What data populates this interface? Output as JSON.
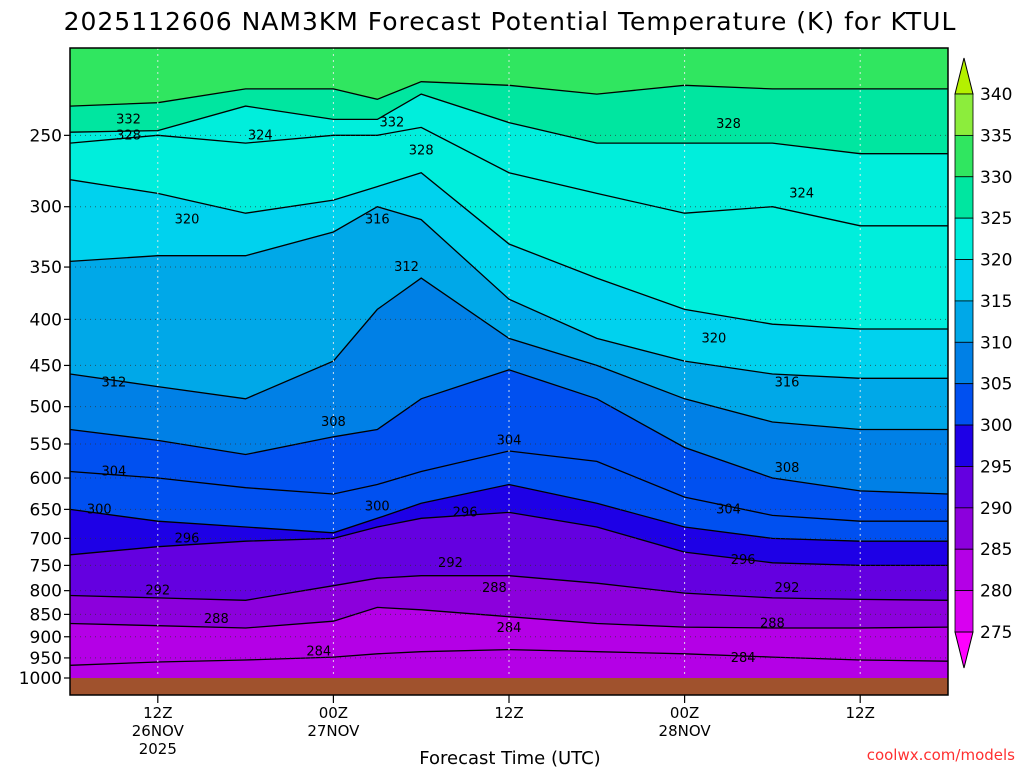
{
  "chart_data": {
    "type": "heatmap",
    "title": "2025112606 NAM3KM Forecast Potential Temperature (K) for KTUL",
    "xlabel": "Forecast Time (UTC)",
    "ylabel": "",
    "credit": "coolwx.com/models",
    "units": "K",
    "y_axis": {
      "quantity": "pressure (hPa)",
      "scale": "log",
      "inverted": true,
      "range": [
        1000,
        200
      ],
      "ticks": [
        250,
        300,
        350,
        400,
        450,
        500,
        550,
        600,
        650,
        700,
        750,
        800,
        850,
        900,
        950,
        1000
      ]
    },
    "x_axis": {
      "range_hours": [
        0,
        60
      ],
      "ticks": [
        {
          "hour": 6,
          "line1": "12Z",
          "line2": "26NOV",
          "line3": "2025"
        },
        {
          "hour": 18,
          "line1": "00Z",
          "line2": "27NOV",
          "line3": ""
        },
        {
          "hour": 30,
          "line1": "12Z",
          "line2": "",
          "line3": ""
        },
        {
          "hour": 42,
          "line1": "00Z",
          "line2": "28NOV",
          "line3": ""
        },
        {
          "hour": 54,
          "line1": "12Z",
          "line2": "",
          "line3": ""
        }
      ]
    },
    "grid": true,
    "colorbar": {
      "levels": [
        275,
        280,
        285,
        290,
        295,
        300,
        305,
        310,
        315,
        320,
        325,
        330,
        335,
        340
      ],
      "labels": [
        "275",
        "280",
        "285",
        "290",
        "295",
        "300",
        "305",
        "310",
        "315",
        "320",
        "325",
        "330",
        "335",
        "340"
      ],
      "colors": [
        "#ff00ff",
        "#d800f0",
        "#b400e6",
        "#8c00dc",
        "#6400e0",
        "#1e00e6",
        "#0050f0",
        "#0080e6",
        "#00a8e8",
        "#00d2ee",
        "#00eedc",
        "#00e6a0",
        "#30e660",
        "#8ced3c",
        "#b4f000"
      ]
    },
    "ground_color": "#a0522d",
    "time_hours": [
      0,
      6,
      12,
      18,
      21,
      24,
      30,
      36,
      42,
      48,
      54,
      60
    ],
    "contours": [
      {
        "theta": 284,
        "p": [
          968,
          960,
          955,
          948,
          940,
          935,
          930,
          935,
          940,
          948,
          955,
          958
        ]
      },
      {
        "theta": 288,
        "p": [
          870,
          875,
          880,
          865,
          835,
          840,
          855,
          870,
          878,
          880,
          880,
          878
        ]
      },
      {
        "theta": 292,
        "p": [
          810,
          815,
          820,
          790,
          775,
          770,
          770,
          785,
          805,
          815,
          818,
          820
        ]
      },
      {
        "theta": 296,
        "p": [
          730,
          715,
          705,
          700,
          680,
          665,
          655,
          680,
          725,
          745,
          750,
          750
        ]
      },
      {
        "theta": 300,
        "p": [
          650,
          670,
          680,
          690,
          665,
          640,
          610,
          640,
          680,
          700,
          705,
          705
        ]
      },
      {
        "theta": 304,
        "p": [
          590,
          600,
          615,
          625,
          610,
          590,
          560,
          575,
          630,
          660,
          670,
          670
        ]
      },
      {
        "theta": 308,
        "p": [
          530,
          545,
          565,
          540,
          530,
          490,
          455,
          490,
          555,
          600,
          620,
          625
        ]
      },
      {
        "theta": 312,
        "p": [
          460,
          475,
          490,
          445,
          390,
          360,
          420,
          450,
          490,
          520,
          530,
          530
        ]
      },
      {
        "theta": 316,
        "p": [
          345,
          340,
          340,
          320,
          300,
          310,
          380,
          420,
          445,
          460,
          465,
          465
        ]
      },
      {
        "theta": 320,
        "p": [
          280,
          290,
          305,
          295,
          285,
          275,
          330,
          360,
          390,
          405,
          410,
          410
        ]
      },
      {
        "theta": 324,
        "p": [
          255,
          250,
          255,
          250,
          250,
          245,
          275,
          290,
          305,
          300,
          315,
          315
        ]
      },
      {
        "theta": 328,
        "p": [
          248,
          247,
          232,
          240,
          240,
          225,
          242,
          255,
          255,
          255,
          262,
          262
        ]
      },
      {
        "theta": 332,
        "p": [
          232,
          230,
          222,
          222,
          228,
          218,
          220,
          225,
          220,
          222,
          222,
          222
        ]
      }
    ],
    "contour_labels": [
      {
        "text": "284",
        "theta": 284,
        "hour": 17,
        "p": 935
      },
      {
        "theta": 284,
        "text": "284",
        "hour": 30,
        "p": 880
      },
      {
        "theta": 284,
        "text": "284",
        "hour": 46,
        "p": 950
      },
      {
        "theta": 288,
        "text": "288",
        "hour": 10,
        "p": 860
      },
      {
        "theta": 288,
        "text": "288",
        "hour": 29,
        "p": 795
      },
      {
        "theta": 288,
        "text": "288",
        "hour": 48,
        "p": 870
      },
      {
        "theta": 292,
        "text": "292",
        "hour": 6,
        "p": 800
      },
      {
        "theta": 292,
        "text": "292",
        "hour": 26,
        "p": 745
      },
      {
        "theta": 292,
        "text": "292",
        "hour": 49,
        "p": 795
      },
      {
        "theta": 296,
        "text": "296",
        "hour": 8,
        "p": 700
      },
      {
        "theta": 296,
        "text": "296",
        "hour": 27,
        "p": 655
      },
      {
        "theta": 296,
        "text": "296",
        "hour": 46,
        "p": 740
      },
      {
        "theta": 300,
        "text": "300",
        "hour": 2,
        "p": 650
      },
      {
        "theta": 300,
        "text": "300",
        "hour": 21,
        "p": 645
      },
      {
        "theta": 304,
        "text": "304",
        "hour": 3,
        "p": 590
      },
      {
        "theta": 304,
        "text": "304",
        "hour": 30,
        "p": 545
      },
      {
        "theta": 304,
        "text": "304",
        "hour": 45,
        "p": 650
      },
      {
        "theta": 308,
        "text": "308",
        "hour": 18,
        "p": 520
      },
      {
        "theta": 308,
        "text": "308",
        "hour": 49,
        "p": 585
      },
      {
        "theta": 312,
        "text": "312",
        "hour": 3,
        "p": 470
      },
      {
        "theta": 312,
        "text": "312",
        "hour": 23,
        "p": 350
      },
      {
        "theta": 316,
        "text": "316",
        "hour": 21,
        "p": 310
      },
      {
        "theta": 316,
        "text": "316",
        "hour": 49,
        "p": 470
      },
      {
        "theta": 320,
        "text": "320",
        "hour": 8,
        "p": 310
      },
      {
        "theta": 320,
        "text": "320",
        "hour": 44,
        "p": 420
      },
      {
        "theta": 324,
        "text": "324",
        "hour": 13,
        "p": 250
      },
      {
        "theta": 324,
        "text": "324",
        "hour": 50,
        "p": 290
      },
      {
        "theta": 328,
        "text": "328",
        "hour": 4,
        "p": 250
      },
      {
        "theta": 328,
        "text": "328",
        "hour": 24,
        "p": 260
      },
      {
        "theta": 328,
        "text": "328",
        "hour": 45,
        "p": 243
      },
      {
        "theta": 332,
        "text": "332",
        "hour": 4,
        "p": 240
      },
      {
        "theta": 332,
        "text": "332",
        "hour": 22,
        "p": 242
      }
    ]
  }
}
